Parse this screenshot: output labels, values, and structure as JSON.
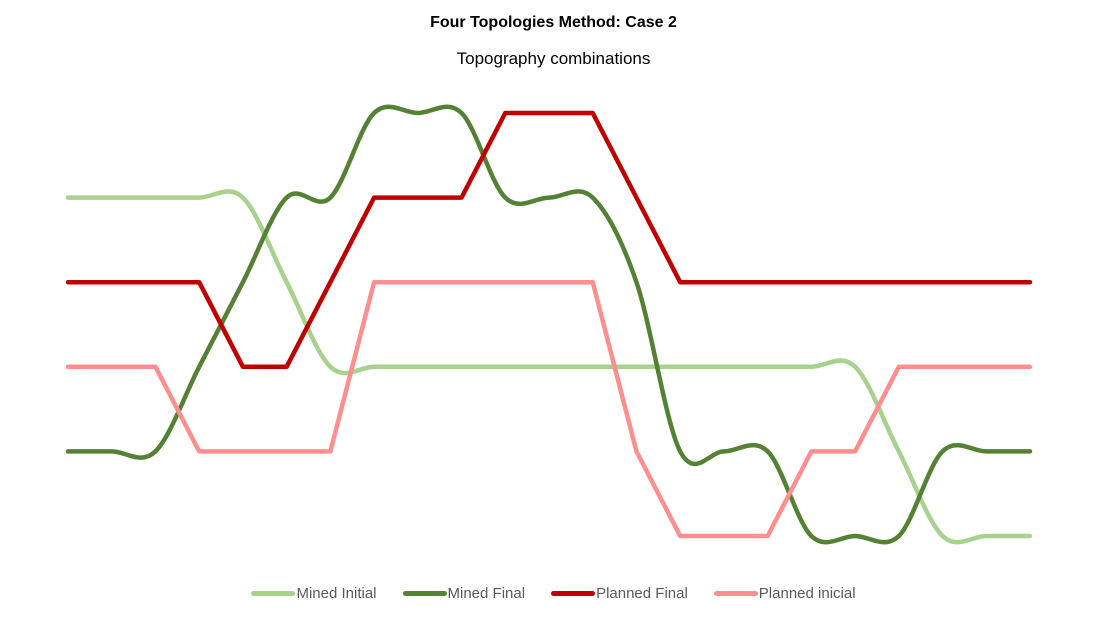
{
  "chart_data": {
    "type": "line",
    "title": "Four Topologies Method: Case 2",
    "subtitle": "Topography combinations",
    "xlabel": "",
    "ylabel": "",
    "ylim": [
      1,
      6
    ],
    "grid": false,
    "axes_visible": false,
    "legend": "bottom",
    "x": [
      1,
      2,
      3,
      4,
      5,
      6,
      7,
      8,
      9,
      10,
      11,
      12,
      13,
      14,
      15,
      16,
      17,
      18,
      19,
      20,
      21,
      22,
      23
    ],
    "series": [
      {
        "name": "Mined Initial",
        "color": "#A9D18E",
        "smooth": true,
        "values": [
          5,
          5,
          5,
          5,
          5,
          4,
          3,
          3,
          3,
          3,
          3,
          3,
          3,
          3,
          3,
          3,
          3,
          3,
          3,
          2,
          1,
          1,
          1
        ]
      },
      {
        "name": "Mined Final",
        "color": "#548235",
        "smooth": true,
        "values": [
          2,
          2,
          2,
          3,
          4,
          5,
          5,
          6,
          6,
          6,
          5,
          5,
          5,
          4,
          2,
          2,
          2,
          1,
          1,
          1,
          2,
          2,
          2
        ]
      },
      {
        "name": "Planned Final",
        "color": "#C00000",
        "smooth": false,
        "values": [
          4,
          4,
          4,
          4,
          3,
          3,
          4,
          5,
          5,
          5,
          6,
          6,
          6,
          5,
          4,
          4,
          4,
          4,
          4,
          4,
          4,
          4,
          4
        ]
      },
      {
        "name": "Planned inicial",
        "color": "#FF8F8F",
        "smooth": false,
        "values": [
          3,
          3,
          3,
          2,
          2,
          2,
          2,
          4,
          4,
          4,
          4,
          4,
          4,
          2,
          1,
          1,
          1,
          2,
          2,
          3,
          3,
          3,
          3
        ]
      }
    ]
  }
}
